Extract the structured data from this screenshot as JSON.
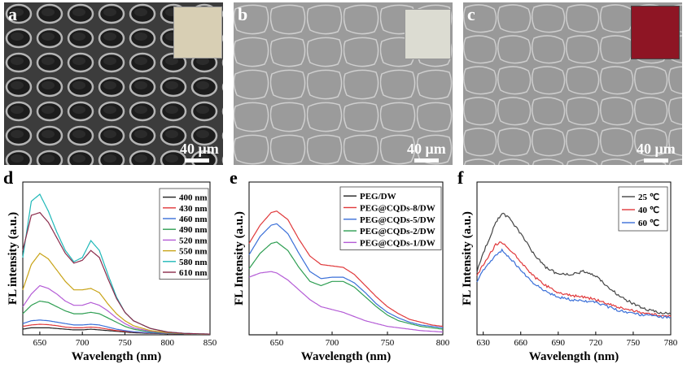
{
  "panels": {
    "a": {
      "letter": "a",
      "scale": "40 μm"
    },
    "b": {
      "letter": "b",
      "scale": "40 μm"
    },
    "c": {
      "letter": "c",
      "scale": "40 μm"
    },
    "d": {
      "letter": "d"
    },
    "e": {
      "letter": "e"
    },
    "f": {
      "letter": "f"
    }
  },
  "colors": {
    "sem_a_bg": "#3a3a3a",
    "sem_bc_bg": "#9a9a9a",
    "inset_a": "#d8cfb4",
    "inset_b": "#dcdcd2",
    "inset_c": "#8e1524"
  },
  "chart_data": [
    {
      "id": "d",
      "type": "line",
      "xlabel": "Wavelength (nm)",
      "ylabel": "FL intensity (a.u.)",
      "xlim": [
        630,
        850
      ],
      "xticks": [
        650,
        700,
        750,
        800,
        850
      ],
      "legend_position": "top-right",
      "series": [
        {
          "name": "400 nm",
          "color": "#222222",
          "x": [
            630,
            640,
            650,
            660,
            670,
            680,
            690,
            700,
            710,
            720,
            730,
            740,
            750,
            760,
            780,
            800,
            820,
            850
          ],
          "y": [
            0.04,
            0.05,
            0.05,
            0.05,
            0.045,
            0.04,
            0.035,
            0.035,
            0.04,
            0.035,
            0.03,
            0.025,
            0.02,
            0.015,
            0.01,
            0.008,
            0.006,
            0.005
          ]
        },
        {
          "name": "430 nm",
          "color": "#e0393b",
          "x": [
            630,
            640,
            650,
            660,
            670,
            680,
            690,
            700,
            710,
            720,
            730,
            740,
            750,
            760,
            780,
            800,
            820,
            850
          ],
          "y": [
            0.06,
            0.07,
            0.075,
            0.072,
            0.065,
            0.055,
            0.05,
            0.05,
            0.055,
            0.05,
            0.04,
            0.03,
            0.025,
            0.02,
            0.012,
            0.009,
            0.006,
            0.004
          ]
        },
        {
          "name": "460 nm",
          "color": "#3a6fd8",
          "x": [
            630,
            640,
            650,
            660,
            670,
            680,
            690,
            700,
            710,
            720,
            730,
            740,
            750,
            760,
            780,
            800,
            820,
            850
          ],
          "y": [
            0.08,
            0.1,
            0.105,
            0.1,
            0.09,
            0.08,
            0.07,
            0.07,
            0.075,
            0.07,
            0.055,
            0.04,
            0.03,
            0.022,
            0.014,
            0.01,
            0.006,
            0.004
          ]
        },
        {
          "name": "490 nm",
          "color": "#2e9e52",
          "x": [
            630,
            640,
            650,
            660,
            670,
            680,
            690,
            700,
            710,
            720,
            730,
            740,
            750,
            760,
            780,
            800,
            820,
            850
          ],
          "y": [
            0.15,
            0.21,
            0.24,
            0.23,
            0.2,
            0.17,
            0.15,
            0.15,
            0.16,
            0.15,
            0.12,
            0.09,
            0.06,
            0.04,
            0.02,
            0.012,
            0.007,
            0.004
          ]
        },
        {
          "name": "520 nm",
          "color": "#b45cd6",
          "x": [
            630,
            640,
            650,
            660,
            670,
            680,
            690,
            700,
            710,
            720,
            730,
            740,
            750,
            760,
            780,
            800,
            820,
            850
          ],
          "y": [
            0.2,
            0.29,
            0.35,
            0.33,
            0.29,
            0.24,
            0.21,
            0.21,
            0.23,
            0.21,
            0.17,
            0.12,
            0.08,
            0.05,
            0.025,
            0.014,
            0.008,
            0.004
          ]
        },
        {
          "name": "550 nm",
          "color": "#c8a316",
          "x": [
            630,
            640,
            650,
            660,
            670,
            680,
            690,
            700,
            710,
            720,
            730,
            740,
            750,
            760,
            780,
            800,
            820,
            850
          ],
          "y": [
            0.32,
            0.5,
            0.58,
            0.54,
            0.46,
            0.38,
            0.32,
            0.32,
            0.33,
            0.3,
            0.22,
            0.15,
            0.1,
            0.065,
            0.03,
            0.016,
            0.008,
            0.004
          ]
        },
        {
          "name": "580 nm",
          "color": "#1fb8b8",
          "x": [
            630,
            640,
            650,
            660,
            670,
            680,
            690,
            700,
            710,
            720,
            730,
            740,
            750,
            760,
            780,
            800,
            820,
            850
          ],
          "y": [
            0.55,
            0.95,
            1.0,
            0.88,
            0.73,
            0.6,
            0.52,
            0.55,
            0.67,
            0.6,
            0.43,
            0.27,
            0.16,
            0.1,
            0.045,
            0.02,
            0.01,
            0.005
          ]
        },
        {
          "name": "610 nm",
          "color": "#8a2a4a",
          "x": [
            630,
            640,
            650,
            660,
            670,
            680,
            690,
            700,
            710,
            720,
            730,
            740,
            750,
            760,
            780,
            800,
            820,
            850
          ],
          "y": [
            0.6,
            0.85,
            0.87,
            0.8,
            0.69,
            0.58,
            0.51,
            0.53,
            0.6,
            0.55,
            0.4,
            0.26,
            0.16,
            0.1,
            0.045,
            0.02,
            0.01,
            0.005
          ]
        }
      ]
    },
    {
      "id": "e",
      "type": "line",
      "xlabel": "Wavelength (nm)",
      "ylabel": "FL Intensity (a.u.)",
      "xlim": [
        625,
        800
      ],
      "xticks": [
        650,
        700,
        750,
        800
      ],
      "legend_position": "top-right",
      "series": [
        {
          "name": "PEG/DW",
          "color": "#222222",
          "x": [
            625,
            700,
            800
          ],
          "y": [
            0.0,
            0.0,
            0.0
          ]
        },
        {
          "name": "PEG@CQDs-8/DW",
          "color": "#e0393b",
          "x": [
            625,
            635,
            645,
            650,
            660,
            670,
            680,
            690,
            700,
            710,
            720,
            730,
            740,
            750,
            760,
            770,
            780,
            790,
            800
          ],
          "y": [
            0.65,
            0.78,
            0.87,
            0.88,
            0.82,
            0.68,
            0.56,
            0.5,
            0.49,
            0.48,
            0.43,
            0.35,
            0.27,
            0.2,
            0.15,
            0.11,
            0.09,
            0.07,
            0.06
          ]
        },
        {
          "name": "PEG@CQDs-5/DW",
          "color": "#3a6fd8",
          "x": [
            625,
            635,
            645,
            650,
            660,
            670,
            680,
            690,
            700,
            710,
            720,
            730,
            740,
            750,
            760,
            770,
            780,
            790,
            800
          ],
          "y": [
            0.57,
            0.7,
            0.78,
            0.79,
            0.72,
            0.58,
            0.45,
            0.4,
            0.41,
            0.41,
            0.37,
            0.3,
            0.22,
            0.16,
            0.12,
            0.09,
            0.07,
            0.06,
            0.05
          ]
        },
        {
          "name": "PEG@CQDs-2/DW",
          "color": "#2e9e52",
          "x": [
            625,
            635,
            645,
            650,
            660,
            670,
            680,
            690,
            700,
            710,
            720,
            730,
            740,
            750,
            760,
            770,
            780,
            790,
            800
          ],
          "y": [
            0.47,
            0.58,
            0.65,
            0.66,
            0.6,
            0.48,
            0.38,
            0.35,
            0.38,
            0.38,
            0.34,
            0.27,
            0.2,
            0.14,
            0.1,
            0.08,
            0.06,
            0.05,
            0.04
          ]
        },
        {
          "name": "PEG@CQDs-1/DW",
          "color": "#b45cd6",
          "x": [
            625,
            635,
            645,
            650,
            660,
            670,
            680,
            690,
            700,
            710,
            720,
            730,
            740,
            750,
            760,
            770,
            780,
            790,
            800
          ],
          "y": [
            0.41,
            0.44,
            0.45,
            0.44,
            0.39,
            0.32,
            0.25,
            0.2,
            0.18,
            0.16,
            0.13,
            0.1,
            0.08,
            0.06,
            0.05,
            0.04,
            0.03,
            0.025,
            0.02
          ]
        }
      ]
    },
    {
      "id": "f",
      "type": "line",
      "xlabel": "Wavelength (nm)",
      "ylabel": "FL Intensity (a.u.)",
      "xlim": [
        625,
        780
      ],
      "xticks": [
        630,
        660,
        690,
        720,
        750,
        780
      ],
      "legend_position": "top-right",
      "series": [
        {
          "name": "25 ℃",
          "color": "#444444",
          "x": [
            625,
            630,
            640,
            645,
            650,
            660,
            670,
            680,
            690,
            700,
            710,
            720,
            730,
            740,
            750,
            760,
            770,
            780
          ],
          "y": [
            0.45,
            0.58,
            0.8,
            0.86,
            0.84,
            0.72,
            0.58,
            0.48,
            0.43,
            0.43,
            0.45,
            0.42,
            0.34,
            0.27,
            0.22,
            0.18,
            0.16,
            0.15
          ]
        },
        {
          "name": "40 ℃",
          "color": "#e0393b",
          "x": [
            625,
            630,
            640,
            645,
            650,
            660,
            670,
            680,
            690,
            700,
            710,
            720,
            730,
            740,
            750,
            760,
            770,
            780
          ],
          "y": [
            0.42,
            0.5,
            0.64,
            0.66,
            0.62,
            0.52,
            0.42,
            0.35,
            0.3,
            0.28,
            0.27,
            0.25,
            0.22,
            0.19,
            0.17,
            0.15,
            0.14,
            0.13
          ]
        },
        {
          "name": "60 ℃",
          "color": "#3a6fd8",
          "x": [
            625,
            630,
            640,
            645,
            650,
            660,
            670,
            680,
            690,
            700,
            710,
            720,
            730,
            740,
            750,
            760,
            770,
            780
          ],
          "y": [
            0.38,
            0.46,
            0.57,
            0.6,
            0.56,
            0.46,
            0.37,
            0.31,
            0.27,
            0.25,
            0.24,
            0.23,
            0.2,
            0.17,
            0.15,
            0.14,
            0.13,
            0.12
          ]
        }
      ]
    }
  ]
}
